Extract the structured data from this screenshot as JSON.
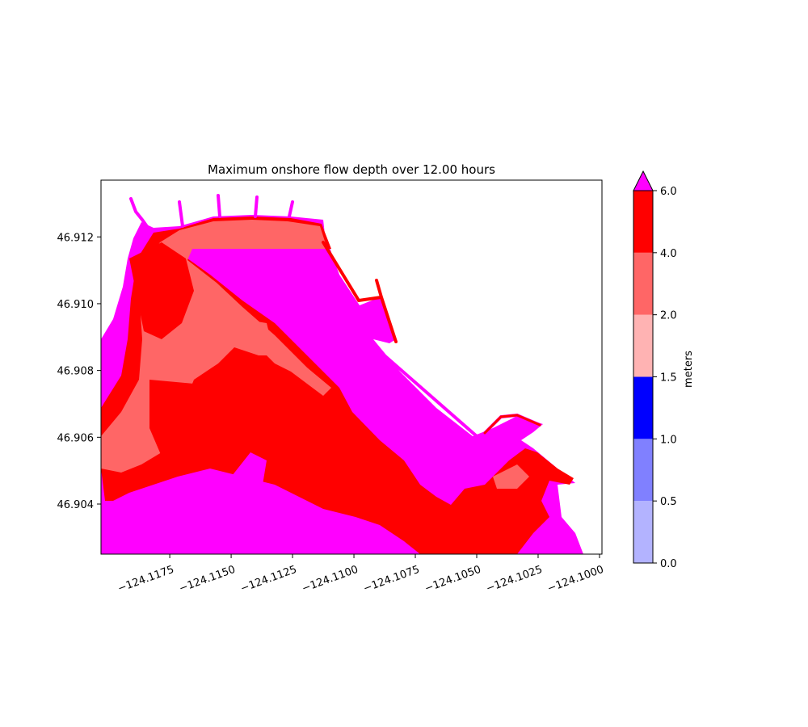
{
  "chart_data": {
    "type": "heatmap",
    "title": "Maximum onshore flow depth over 12.00 hours",
    "xlabel": "",
    "ylabel": "",
    "xlim": [
      -124.1203,
      -124.0999
    ],
    "ylim": [
      46.9025,
      46.9137
    ],
    "x_ticks": [
      -124.1175,
      -124.115,
      -124.1125,
      -124.11,
      -124.1075,
      -124.105,
      -124.1025,
      -124.1
    ],
    "x_tick_labels": [
      "−124.1175",
      "−124.1150",
      "−124.1125",
      "−124.1100",
      "−124.1075",
      "−124.1050",
      "−124.1025",
      "−124.1000"
    ],
    "y_ticks": [
      46.904,
      46.906,
      46.908,
      46.91,
      46.912
    ],
    "y_tick_labels": [
      "46.904",
      "46.906",
      "46.908",
      "46.910",
      "46.912"
    ],
    "x_tick_rotation": 20,
    "grid": false,
    "colorbar": {
      "label": "meters",
      "levels": [
        0.0,
        0.5,
        1.0,
        1.5,
        2.0,
        4.0,
        6.0
      ],
      "level_labels": [
        "0.0",
        "0.5",
        "1.0",
        "1.5",
        "2.0",
        "4.0",
        "6.0"
      ],
      "colors": [
        "#b3b3ff",
        "#8080ff",
        "#0000ff",
        "#ffb3b3",
        "#ff6666",
        "#ff0000"
      ],
      "over_color": "#ff00ff",
      "extend": "max"
    },
    "regions": [
      {
        "band": "6.0+",
        "color": "#ff00ff",
        "description": "outer fringe and lower-left beach area"
      },
      {
        "band": "4.0-6.0",
        "color": "#ff0000",
        "description": "main inundated land area"
      },
      {
        "band": "2.0-4.0",
        "color": "#ff6666",
        "description": "higher ground within inundated land"
      }
    ]
  }
}
